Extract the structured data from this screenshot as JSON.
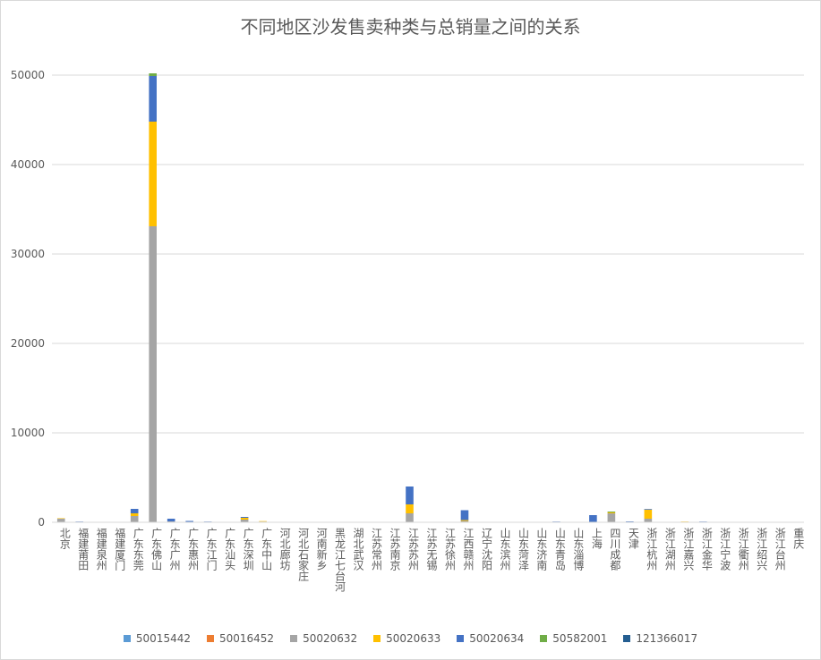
{
  "chart_data": {
    "type": "bar",
    "stacked": true,
    "title": "不同地区沙发售卖种类与总销量之间的关系",
    "xlabel": "",
    "ylabel": "",
    "ylim": [
      0,
      50000
    ],
    "yticks": [
      0,
      10000,
      20000,
      30000,
      40000,
      50000
    ],
    "grid": true,
    "legend_position": "bottom",
    "categories": [
      "北京",
      "福建莆田",
      "福建泉州",
      "福建厦门",
      "广东东莞",
      "广东佛山",
      "广东广州",
      "广东惠州",
      "广东江门",
      "广东汕头",
      "广东深圳",
      "广东中山",
      "河北廊坊",
      "河北石家庄",
      "河南新乡",
      "黑龙江七台河",
      "湖北武汉",
      "江苏常州",
      "江苏南京",
      "江苏苏州",
      "江苏无锡",
      "江苏徐州",
      "江西赣州",
      "辽宁沈阳",
      "山东滨州",
      "山东菏泽",
      "山东济南",
      "山东青岛",
      "山东淄博",
      "上海",
      "四川成都",
      "天津",
      "浙江杭州",
      "浙江湖州",
      "浙江嘉兴",
      "浙江金华",
      "浙江宁波",
      "浙江衢州",
      "浙江绍兴",
      "浙江台州",
      "重庆"
    ],
    "series": [
      {
        "name": "50015442",
        "color": "#5B9BD5",
        "values": [
          0,
          0,
          0,
          0,
          0,
          0,
          0,
          0,
          0,
          0,
          0,
          0,
          0,
          0,
          0,
          0,
          0,
          0,
          0,
          0,
          0,
          0,
          0,
          0,
          0,
          0,
          0,
          0,
          0,
          0,
          0,
          0,
          0,
          0,
          0,
          0,
          0,
          0,
          0,
          0,
          0
        ]
      },
      {
        "name": "50016452",
        "color": "#ED7D31",
        "values": [
          0,
          0,
          0,
          0,
          0,
          0,
          0,
          0,
          0,
          0,
          0,
          0,
          0,
          0,
          0,
          0,
          0,
          0,
          0,
          0,
          0,
          0,
          0,
          0,
          0,
          0,
          0,
          0,
          0,
          0,
          0,
          0,
          0,
          0,
          0,
          0,
          0,
          0,
          0,
          0,
          0
        ]
      },
      {
        "name": "50020632",
        "color": "#A5A5A5",
        "values": [
          400,
          0,
          0,
          0,
          700,
          33100,
          100,
          0,
          0,
          0,
          300,
          80,
          0,
          0,
          0,
          0,
          0,
          0,
          0,
          1000,
          0,
          0,
          150,
          0,
          0,
          0,
          0,
          0,
          0,
          0,
          1000,
          0,
          400,
          0,
          0,
          0,
          0,
          0,
          0,
          0,
          0
        ]
      },
      {
        "name": "50020633",
        "color": "#FFC000",
        "values": [
          50,
          0,
          0,
          0,
          300,
          11700,
          0,
          0,
          0,
          0,
          200,
          50,
          0,
          0,
          0,
          0,
          0,
          0,
          0,
          1000,
          0,
          0,
          100,
          0,
          0,
          0,
          0,
          0,
          0,
          0,
          100,
          0,
          1000,
          0,
          80,
          0,
          0,
          0,
          0,
          0,
          0
        ]
      },
      {
        "name": "50020634",
        "color": "#4472C4",
        "values": [
          0,
          80,
          0,
          0,
          500,
          5100,
          300,
          150,
          80,
          0,
          100,
          0,
          0,
          0,
          0,
          0,
          0,
          0,
          0,
          2000,
          0,
          0,
          1100,
          0,
          0,
          0,
          0,
          80,
          0,
          800,
          0,
          100,
          80,
          0,
          0,
          80,
          0,
          0,
          0,
          0,
          0
        ]
      },
      {
        "name": "50582001",
        "color": "#70AD47",
        "values": [
          0,
          0,
          0,
          0,
          0,
          300,
          0,
          0,
          0,
          0,
          0,
          0,
          0,
          0,
          0,
          0,
          0,
          0,
          0,
          0,
          0,
          0,
          0,
          0,
          0,
          0,
          0,
          0,
          0,
          0,
          100,
          0,
          0,
          0,
          0,
          0,
          0,
          0,
          0,
          0,
          0
        ]
      },
      {
        "name": "121366017",
        "color": "#255E91",
        "values": [
          0,
          0,
          0,
          0,
          0,
          0,
          0,
          0,
          0,
          0,
          0,
          0,
          0,
          0,
          0,
          0,
          0,
          0,
          0,
          0,
          0,
          0,
          0,
          0,
          0,
          0,
          0,
          0,
          0,
          0,
          0,
          0,
          0,
          0,
          0,
          0,
          0,
          0,
          0,
          0,
          0
        ]
      }
    ]
  }
}
